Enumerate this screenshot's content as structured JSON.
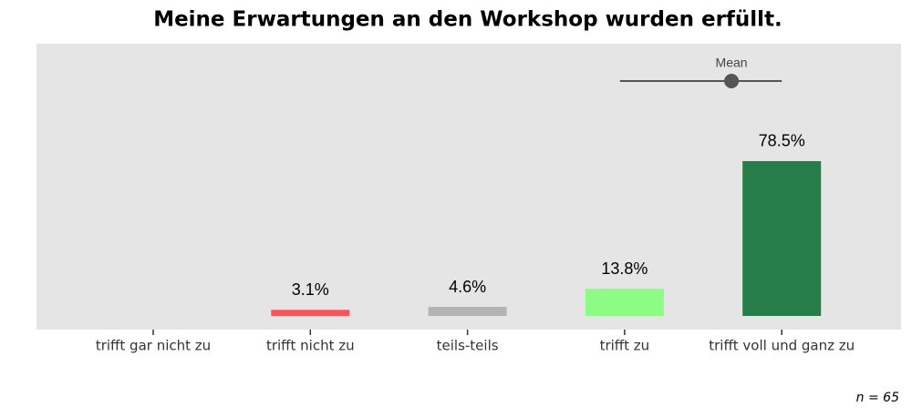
{
  "chart_data": {
    "type": "bar",
    "title": "Meine Erwartungen an den Workshop wurden erfüllt.",
    "categories": [
      "trifft gar nicht zu",
      "trifft nicht zu",
      "teils-teils",
      "trifft zu",
      "trifft voll und ganz zu"
    ],
    "values": [
      null,
      3.1,
      4.6,
      13.8,
      78.5
    ],
    "value_labels": [
      null,
      "3.1%",
      "4.6%",
      "13.8%",
      "78.5%"
    ],
    "colors": [
      "#d7191c",
      "#f8545c",
      "#b3b3b3",
      "#8dfc84",
      "#267d47"
    ],
    "mean": {
      "label": "Mean",
      "value": 4.68,
      "low": 3.97,
      "high": 5,
      "color": "#555555"
    },
    "note": "n = 65"
  }
}
